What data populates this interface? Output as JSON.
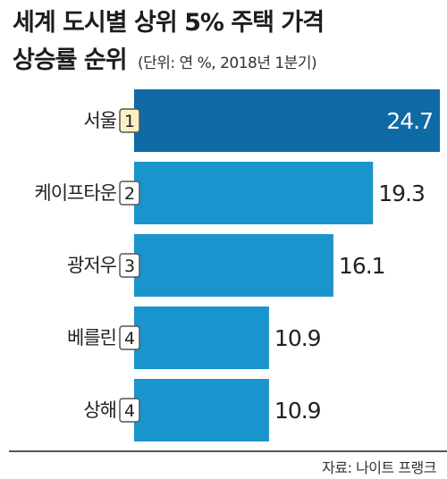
{
  "title_line1": "세계 도시별 상위 5% 주택 가격",
  "title_line2": "상승률 순위",
  "subtitle": "(단위: 연 %, 2018년 1분기)",
  "source": "자료: 나이트 프랭크",
  "colors": {
    "bar_top": "#0f6aa5",
    "bar": "#1a94cc",
    "rank_top_fill": "#fbf0c5",
    "rank_fill": "#ffffff",
    "rank_border": "#555555",
    "value_top": "#ffffff",
    "value": "#222222"
  },
  "chart_data": {
    "type": "bar",
    "orientation": "horizontal",
    "categories": [
      "서울",
      "케이프타운",
      "광저우",
      "베를린",
      "상해"
    ],
    "ranks": [
      "1",
      "2",
      "3",
      "4",
      "4"
    ],
    "values": [
      24.7,
      19.3,
      16.1,
      10.9,
      10.9
    ],
    "value_labels": [
      "24.7",
      "19.3",
      "16.1",
      "10.9",
      "10.9"
    ],
    "xlim": [
      0,
      24.7
    ],
    "grid": false,
    "legend": "none"
  }
}
